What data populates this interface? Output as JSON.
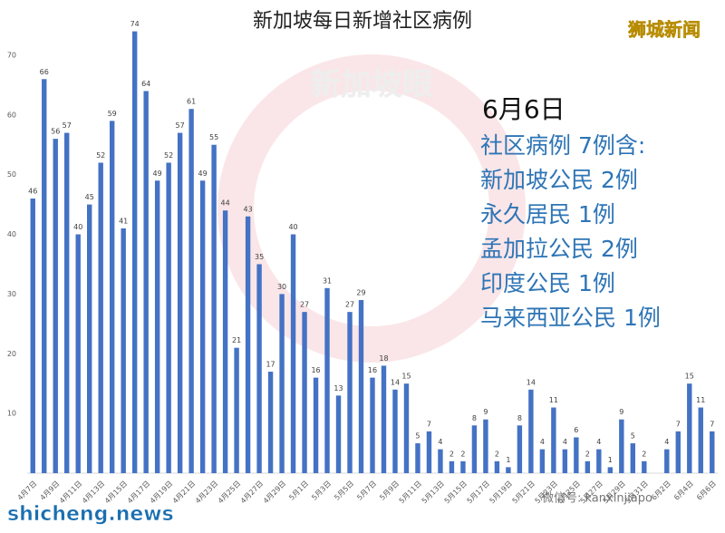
{
  "chart_data": {
    "type": "bar",
    "title": "新加坡每日新增社区病例",
    "categories": [
      "4月7日",
      null,
      "4月9日",
      null,
      "4月11日",
      null,
      "4月13日",
      null,
      "4月15日",
      null,
      "4月17日",
      null,
      "4月19日",
      null,
      "4月21日",
      null,
      "4月23日",
      null,
      "4月25日",
      null,
      "4月27日",
      null,
      "4月29日",
      null,
      "5月1日",
      null,
      "5月3日",
      null,
      "5月5日",
      null,
      "5月7日",
      null,
      "5月9日",
      null,
      "5月11日",
      null,
      "5月13日",
      null,
      "5月15日",
      null,
      "5月17日",
      null,
      "5月19日",
      null,
      "5月21日",
      null,
      "5月23日",
      null,
      "5月25日",
      null,
      "5月27日",
      null,
      "5月29日",
      null,
      "5月31日",
      null,
      "6月2日",
      null,
      "6月4日",
      null,
      "6月6日"
    ],
    "values": [
      46,
      66,
      56,
      57,
      40,
      45,
      52,
      59,
      41,
      74,
      64,
      49,
      52,
      57,
      61,
      49,
      55,
      44,
      21,
      43,
      35,
      17,
      30,
      40,
      27,
      16,
      31,
      13,
      27,
      29,
      16,
      18,
      14,
      15,
      5,
      7,
      4,
      2,
      2,
      8,
      9,
      2,
      1,
      8,
      14,
      4,
      11,
      4,
      6,
      2,
      4,
      1,
      9,
      5,
      2,
      null,
      4,
      7,
      15,
      11,
      7
    ],
    "color": "#4472c4",
    "ylim": [
      0,
      75
    ],
    "yticks": [
      10,
      20,
      30,
      40,
      50,
      60,
      70
    ],
    "grid": false,
    "annotations": [
      "6月6日",
      "社区病例 7例含:",
      "新加坡公民 2例",
      "永久居民 1例",
      "孟加拉公民 2例",
      "印度公民 1例",
      "马来西亚公民 1例"
    ],
    "logo": "狮城新闻",
    "watermark": "新加坡眼",
    "site": "shicheng.news",
    "wechat": "微信号: kanxinjiapo"
  }
}
